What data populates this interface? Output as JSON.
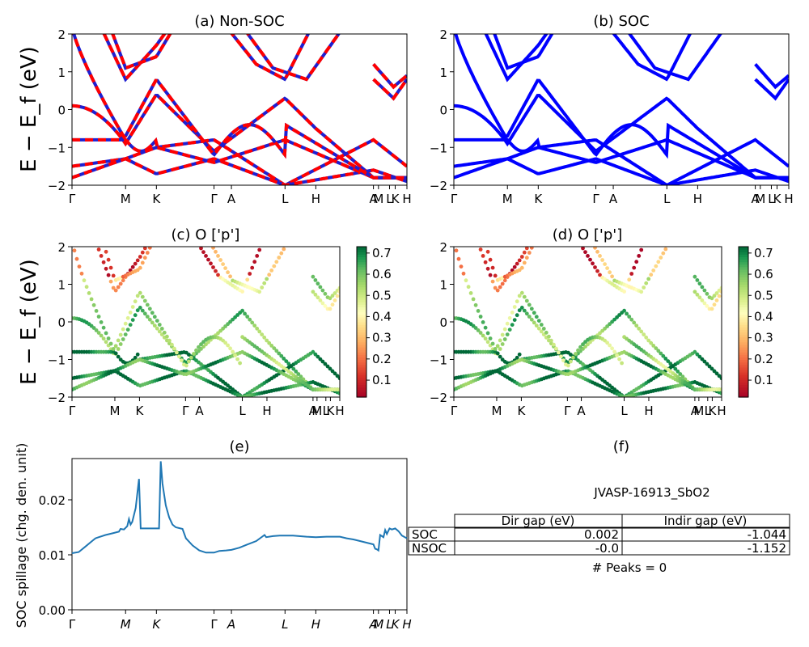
{
  "panels": {
    "a": {
      "title": "(a) Non-SOC"
    },
    "b": {
      "title": "(b) SOC"
    },
    "c": {
      "title": "(c)  O ['p']"
    },
    "d": {
      "title": "(d) O ['p']"
    },
    "e": {
      "title": "(e)"
    },
    "f": {
      "title": "(f)"
    }
  },
  "band_ylabel": "E − E_f (eV)",
  "kpath": {
    "labels": [
      "Γ",
      "M",
      "K",
      "Γ",
      "A",
      "L",
      "H",
      "A",
      "M",
      "L",
      "K",
      "H"
    ],
    "positions": [
      0,
      0.16,
      0.252,
      0.424,
      0.476,
      0.636,
      0.728,
      0.9,
      0.915,
      0.948,
      0.965,
      1.0
    ]
  },
  "band_ylim": [
    -2,
    2
  ],
  "band_yticks": [
    "−2",
    "−1",
    "0",
    "1",
    "2"
  ],
  "colorbar": {
    "ticks": [
      "0.1",
      "0.2",
      "0.3",
      "0.4",
      "0.5",
      "0.6",
      "0.7"
    ],
    "range": [
      0.02,
      0.73
    ],
    "cmap": "RdYlGn"
  },
  "colors": {
    "nonsoc_a": "#ff0000",
    "nonsoc_b": "#1f1fd0",
    "soc": "#0000ff",
    "spillage": "#1f77b4"
  },
  "chart_data": [
    {
      "type": "line",
      "panel": "e",
      "title": "(e)",
      "ylabel": "SOC spillage (chg. den. unit)",
      "ylim": [
        0.0,
        0.0275
      ],
      "yticks": [
        "0.00",
        "0.01",
        "0.02"
      ],
      "x": [
        0,
        0.02,
        0.04,
        0.06,
        0.07,
        0.08,
        0.1,
        0.12,
        0.14,
        0.145,
        0.155,
        0.165,
        0.17,
        0.175,
        0.18,
        0.19,
        0.2,
        0.205,
        0.21,
        0.215,
        0.22,
        0.24,
        0.26,
        0.265,
        0.27,
        0.28,
        0.29,
        0.3,
        0.31,
        0.33,
        0.34,
        0.36,
        0.38,
        0.4,
        0.424,
        0.44,
        0.46,
        0.476,
        0.5,
        0.52,
        0.55,
        0.575,
        0.58,
        0.6,
        0.62,
        0.636,
        0.66,
        0.7,
        0.728,
        0.76,
        0.8,
        0.82,
        0.84,
        0.86,
        0.9,
        0.905,
        0.91,
        0.915,
        0.92,
        0.93,
        0.935,
        0.94,
        0.948,
        0.955,
        0.965,
        0.975,
        0.985,
        1.0
      ],
      "y": [
        0.0103,
        0.0105,
        0.0115,
        0.0125,
        0.013,
        0.0132,
        0.0136,
        0.0139,
        0.0142,
        0.0147,
        0.0146,
        0.0152,
        0.0165,
        0.0155,
        0.016,
        0.0185,
        0.0238,
        0.0148,
        0.0148,
        0.0148,
        0.0148,
        0.0148,
        0.0148,
        0.027,
        0.023,
        0.019,
        0.0168,
        0.0155,
        0.015,
        0.0147,
        0.013,
        0.0117,
        0.0108,
        0.0104,
        0.0104,
        0.0107,
        0.0108,
        0.0109,
        0.0113,
        0.0118,
        0.0125,
        0.0136,
        0.0132,
        0.0134,
        0.0135,
        0.0135,
        0.0135,
        0.0133,
        0.0132,
        0.0133,
        0.0133,
        0.013,
        0.0128,
        0.0125,
        0.0119,
        0.0111,
        0.011,
        0.0108,
        0.0136,
        0.0132,
        0.0145,
        0.0138,
        0.0148,
        0.0146,
        0.0148,
        0.0143,
        0.0135,
        0.013
      ]
    },
    {
      "type": "table",
      "panel": "f",
      "title": "(f)",
      "material": "JVASP-16913_SbO2",
      "columns": [
        "",
        "Dir gap (eV)",
        "Indir gap (eV)"
      ],
      "rows": [
        [
          "SOC",
          "0.002",
          "-1.044"
        ],
        [
          "NSOC",
          "-0.0",
          "-1.152"
        ]
      ],
      "note": "# Peaks = 0"
    }
  ]
}
